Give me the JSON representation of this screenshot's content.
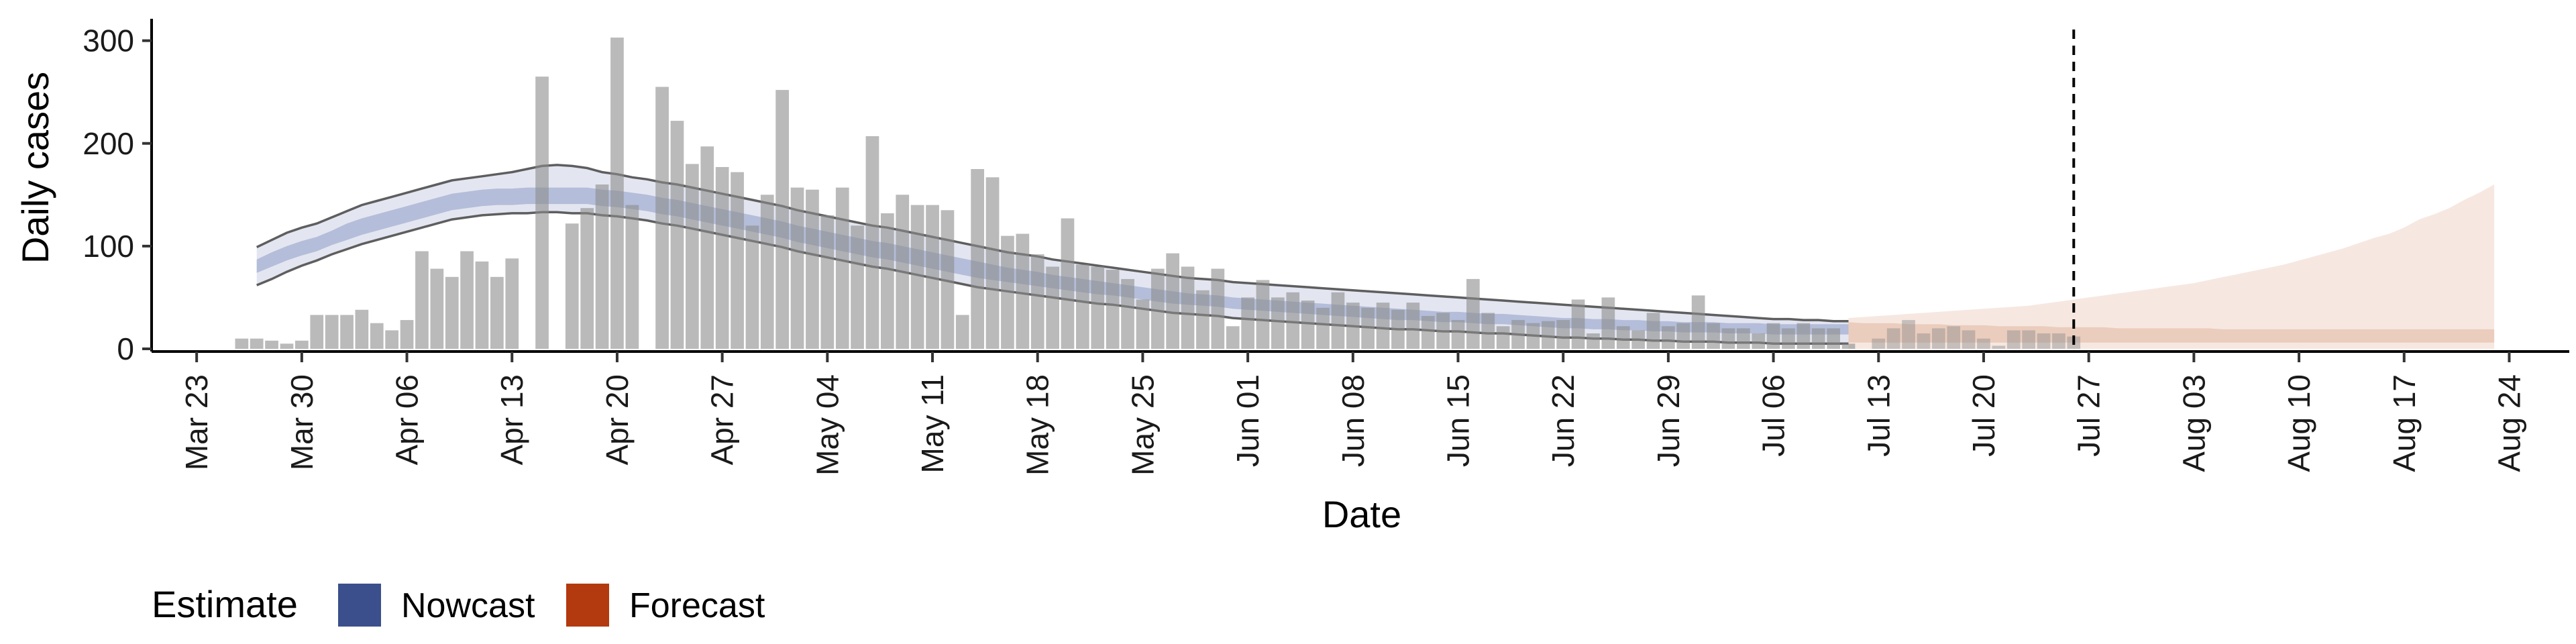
{
  "chart_data": {
    "type": "bar",
    "xlabel": "Date",
    "ylabel": "Daily cases",
    "ylim": [
      0,
      320
    ],
    "x_range": [
      "2020-03-20",
      "2020-08-28"
    ],
    "yticks": [
      0,
      100,
      200,
      300
    ],
    "xticks": [
      "2020-03-23",
      "2020-03-30",
      "2020-04-06",
      "2020-04-13",
      "2020-04-20",
      "2020-04-27",
      "2020-05-04",
      "2020-05-11",
      "2020-05-18",
      "2020-05-25",
      "2020-06-01",
      "2020-06-08",
      "2020-06-15",
      "2020-06-22",
      "2020-06-29",
      "2020-07-06",
      "2020-07-13",
      "2020-07-20",
      "2020-07-27",
      "2020-08-03",
      "2020-08-10",
      "2020-08-17",
      "2020-08-24"
    ],
    "xtick_labels": [
      "Mar 23",
      "Mar 30",
      "Apr 06",
      "Apr 13",
      "Apr 20",
      "Apr 27",
      "May 04",
      "May 11",
      "May 18",
      "May 25",
      "Jun 01",
      "Jun 08",
      "Jun 15",
      "Jun 22",
      "Jun 29",
      "Jul 06",
      "Jul 13",
      "Jul 20",
      "Jul 27",
      "Aug 03",
      "Aug 10",
      "Aug 17",
      "Aug 24"
    ],
    "forecast_date": "2020-07-26",
    "bars": {
      "start_date": "2020-03-26",
      "values": [
        10,
        10,
        8,
        5,
        8,
        33,
        33,
        33,
        38,
        25,
        18,
        28,
        95,
        78,
        70,
        95,
        85,
        70,
        88,
        0,
        265,
        0,
        122,
        137,
        160,
        303,
        140,
        0,
        255,
        222,
        180,
        197,
        177,
        172,
        120,
        150,
        252,
        157,
        155,
        130,
        157,
        120,
        207,
        132,
        150,
        140,
        140,
        135,
        33,
        175,
        167,
        110,
        112,
        92,
        80,
        127,
        82,
        80,
        77,
        68,
        48,
        78,
        93,
        80,
        57,
        78,
        22,
        50,
        67,
        50,
        55,
        47,
        40,
        55,
        45,
        40,
        45,
        38,
        45,
        32,
        35,
        28,
        68,
        35,
        22,
        28,
        25,
        27,
        28,
        48,
        15,
        50,
        22,
        18,
        35,
        22,
        25,
        52,
        25,
        20,
        20,
        15,
        25,
        20,
        25,
        20,
        20,
        5,
        0,
        10,
        20,
        28,
        15,
        20,
        22,
        18,
        10,
        3,
        18,
        18,
        15,
        15,
        12
      ],
      "forecast_start_index": 108
    },
    "series": [
      {
        "name": "Nowcast",
        "start_date": "2020-03-27",
        "end_date": "2020-07-11",
        "median": [
          80,
          87,
          93,
          98,
          102,
          108,
          114,
          119,
          123,
          127,
          131,
          135,
          139,
          143,
          145,
          147,
          148,
          148,
          149,
          149,
          149,
          149,
          149,
          147,
          146,
          144,
          142,
          139,
          137,
          134,
          131,
          128,
          125,
          122,
          119,
          116,
          112,
          109,
          106,
          103,
          100,
          97,
          95,
          92,
          89,
          86,
          83,
          80,
          77,
          74,
          72,
          70,
          68,
          65,
          63,
          61,
          59,
          58,
          56,
          54,
          52,
          50,
          48,
          47,
          46,
          44,
          43,
          42,
          41,
          40,
          39,
          38,
          37,
          36,
          35,
          34,
          33,
          33,
          32,
          31,
          31,
          30,
          29,
          29,
          28,
          27,
          26,
          25,
          25,
          24,
          24,
          23,
          23,
          22,
          22,
          21,
          21,
          21,
          20,
          20,
          20,
          19,
          19,
          19,
          19,
          19,
          19
        ],
        "inner_low": [
          74,
          80,
          86,
          91,
          95,
          101,
          106,
          111,
          115,
          119,
          123,
          127,
          131,
          135,
          137,
          139,
          140,
          140,
          141,
          141,
          141,
          141,
          141,
          139,
          138,
          136,
          134,
          131,
          129,
          126,
          123,
          120,
          117,
          114,
          111,
          108,
          104,
          101,
          98,
          95,
          92,
          89,
          87,
          84,
          81,
          78,
          75,
          72,
          69,
          67,
          65,
          63,
          61,
          59,
          57,
          55,
          53,
          52,
          50,
          48,
          46,
          44,
          43,
          42,
          41,
          39,
          38,
          37,
          36,
          35,
          34,
          33,
          32,
          31,
          30,
          29,
          28,
          28,
          27,
          26,
          26,
          25,
          24,
          24,
          23,
          22,
          21,
          20,
          20,
          19,
          19,
          18,
          18,
          17,
          17,
          16,
          16,
          16,
          15,
          15,
          15,
          14,
          14,
          14,
          14,
          14,
          14
        ],
        "inner_high": [
          87,
          94,
          100,
          105,
          109,
          115,
          122,
          127,
          131,
          135,
          139,
          143,
          147,
          151,
          153,
          155,
          156,
          156,
          157,
          157,
          157,
          157,
          157,
          155,
          154,
          152,
          150,
          147,
          145,
          142,
          139,
          136,
          133,
          130,
          127,
          124,
          120,
          117,
          114,
          111,
          108,
          105,
          103,
          100,
          97,
          94,
          91,
          88,
          85,
          82,
          79,
          77,
          75,
          72,
          70,
          68,
          66,
          64,
          62,
          60,
          58,
          56,
          54,
          53,
          52,
          50,
          49,
          48,
          47,
          46,
          45,
          44,
          43,
          42,
          41,
          40,
          39,
          38,
          37,
          36,
          36,
          35,
          34,
          34,
          33,
          32,
          31,
          30,
          30,
          29,
          29,
          28,
          28,
          27,
          27,
          26,
          26,
          26,
          25,
          25,
          25,
          24,
          24,
          24,
          24,
          24,
          24
        ],
        "outer_low": [
          62,
          68,
          75,
          81,
          86,
          92,
          97,
          102,
          106,
          110,
          114,
          118,
          122,
          126,
          128,
          130,
          131,
          132,
          132,
          133,
          133,
          132,
          132,
          130,
          129,
          127,
          125,
          122,
          120,
          117,
          114,
          111,
          108,
          105,
          102,
          99,
          95,
          92,
          89,
          86,
          83,
          80,
          78,
          75,
          72,
          69,
          66,
          63,
          60,
          58,
          56,
          54,
          52,
          50,
          48,
          46,
          44,
          43,
          41,
          39,
          37,
          35,
          34,
          33,
          32,
          30,
          29,
          28,
          27,
          26,
          25,
          24,
          23,
          22,
          21,
          20,
          19,
          19,
          18,
          17,
          17,
          16,
          15,
          15,
          14,
          13,
          12,
          11,
          11,
          10,
          10,
          9,
          9,
          8,
          8,
          7,
          7,
          7,
          6,
          6,
          6,
          5,
          5,
          5,
          5,
          5,
          5
        ],
        "outer_high": [
          99,
          106,
          113,
          118,
          122,
          128,
          134,
          140,
          144,
          148,
          152,
          156,
          160,
          164,
          166,
          168,
          170,
          172,
          175,
          178,
          179,
          178,
          176,
          172,
          170,
          167,
          165,
          162,
          160,
          157,
          154,
          151,
          148,
          145,
          142,
          139,
          135,
          132,
          129,
          126,
          123,
          120,
          118,
          115,
          112,
          109,
          106,
          103,
          100,
          97,
          94,
          92,
          90,
          87,
          85,
          83,
          81,
          79,
          77,
          75,
          73,
          71,
          69,
          68,
          67,
          65,
          64,
          63,
          62,
          61,
          60,
          59,
          58,
          57,
          56,
          55,
          54,
          53,
          52,
          51,
          50,
          49,
          48,
          47,
          46,
          45,
          44,
          43,
          42,
          41,
          40,
          39,
          38,
          37,
          36,
          35,
          34,
          33,
          32,
          31,
          30,
          29,
          29,
          28,
          28,
          27,
          27
        ],
        "color": "#3b4f8c"
      },
      {
        "name": "Forecast",
        "start_date": "2020-07-11",
        "end_date": "2020-08-23",
        "inner_low": [
          6,
          6,
          6,
          6,
          6,
          6,
          6,
          6,
          6,
          6,
          6,
          6,
          6,
          6,
          6,
          6,
          6,
          6,
          6,
          6,
          6,
          6,
          6,
          6,
          6,
          6,
          6,
          6,
          6,
          6,
          6,
          6,
          6,
          6,
          6,
          6,
          6,
          6,
          6,
          6,
          6,
          6,
          6,
          6
        ],
        "inner_high": [
          26,
          25,
          25,
          25,
          24,
          24,
          24,
          23,
          23,
          23,
          22,
          22,
          22,
          22,
          21,
          21,
          21,
          21,
          20,
          20,
          20,
          20,
          20,
          20,
          20,
          19,
          19,
          19,
          19,
          19,
          19,
          19,
          19,
          19,
          19,
          19,
          19,
          19,
          19,
          19,
          19,
          19,
          19,
          19
        ],
        "outer_low": [
          0,
          0,
          0,
          0,
          0,
          0,
          0,
          0,
          0,
          0,
          0,
          0,
          0,
          0,
          0,
          0,
          0,
          0,
          0,
          0,
          0,
          0,
          0,
          0,
          0,
          0,
          0,
          0,
          0,
          0,
          0,
          0,
          0,
          0,
          0,
          0,
          0,
          0,
          0,
          0,
          0,
          0,
          0,
          0
        ],
        "outer_high": [
          30,
          31,
          32,
          33,
          34,
          35,
          36,
          37,
          38,
          39,
          40,
          41,
          42,
          44,
          46,
          48,
          50,
          52,
          54,
          56,
          58,
          60,
          62,
          64,
          67,
          70,
          73,
          76,
          79,
          82,
          86,
          90,
          94,
          98,
          103,
          108,
          112,
          118,
          126,
          131,
          137,
          145,
          152,
          160
        ],
        "color": "#b3390f"
      }
    ],
    "legend": {
      "title": "Estimate",
      "position": "bottom-left",
      "items": [
        {
          "label": "Nowcast",
          "color": "#3b4f8c"
        },
        {
          "label": "Forecast",
          "color": "#b3390f"
        }
      ]
    },
    "grid": false
  }
}
